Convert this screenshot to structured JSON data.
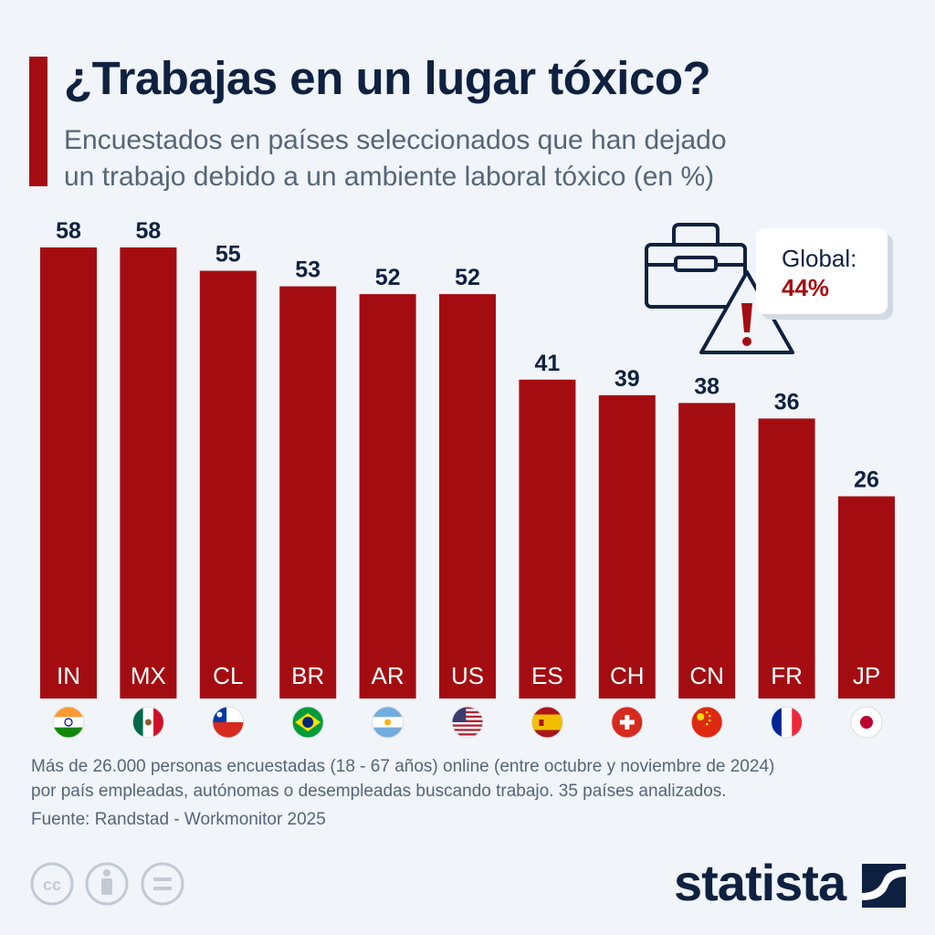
{
  "header": {
    "title": "¿Trabajas en un lugar tóxico?",
    "subtitle_line1": "Encuestados en países seleccionados que han dejado",
    "subtitle_line2": "un trabajo debido a un ambiente laboral tóxico (en %)"
  },
  "callout": {
    "label": "Global:",
    "value": "44%",
    "icons": [
      "briefcase-icon",
      "warning-triangle-icon"
    ]
  },
  "chart_data": {
    "type": "bar",
    "title": "¿Trabajas en un lugar tóxico?",
    "xlabel": "",
    "ylabel": "",
    "ylim": [
      0,
      58
    ],
    "grid": false,
    "categories": [
      "IN",
      "MX",
      "CL",
      "BR",
      "AR",
      "US",
      "ES",
      "CH",
      "CN",
      "FR",
      "JP"
    ],
    "values": [
      58,
      58,
      55,
      53,
      52,
      52,
      41,
      39,
      38,
      36,
      26
    ],
    "bar_color": "#a30d12",
    "flags": [
      "india-flag-icon",
      "mexico-flag-icon",
      "chile-flag-icon",
      "brazil-flag-icon",
      "argentina-flag-icon",
      "usa-flag-icon",
      "spain-flag-icon",
      "switzerland-flag-icon",
      "china-flag-icon",
      "france-flag-icon",
      "japan-flag-icon"
    ]
  },
  "footer": {
    "note_line1": "Más de 26.000 personas encuestadas (18 - 67 años) online (entre octubre y noviembre de 2024)",
    "note_line2": "por país empleadas, autónomas o desempleadas buscando trabajo. 35 países analizados.",
    "source": "Fuente: Randstad - Workmonitor 2025",
    "brand": "statista",
    "license_icons": [
      "cc-icon",
      "attribution-icon",
      "no-derivatives-icon"
    ]
  },
  "colors": {
    "accent": "#a30d12",
    "title": "#0f2140",
    "text": "#55657a",
    "background": "#f1f4f8"
  }
}
